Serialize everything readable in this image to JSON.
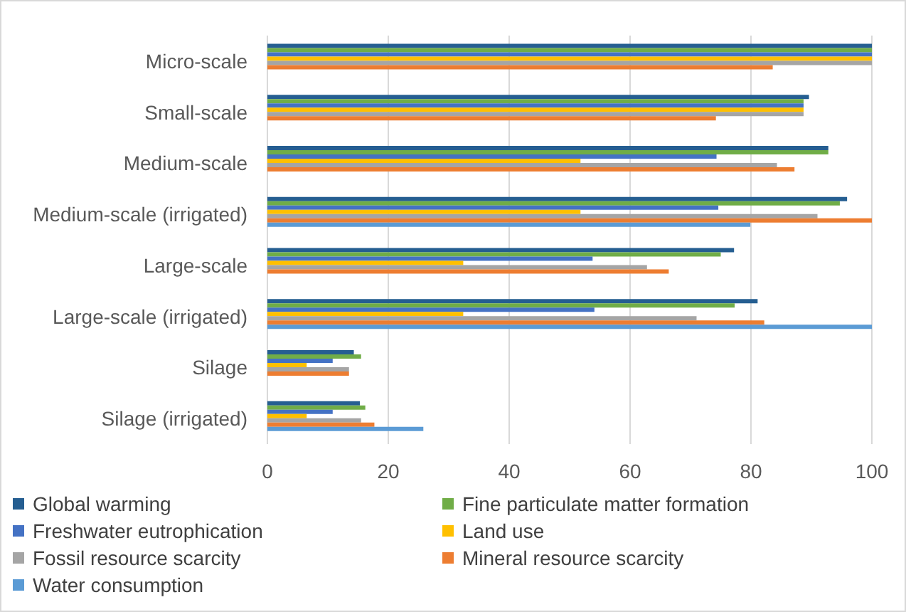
{
  "chart_data": {
    "type": "bar",
    "orientation": "horizontal",
    "categories": [
      "Micro-scale",
      "Small-scale",
      "Medium-scale",
      "Medium-scale (irrigated)",
      "Large-scale",
      "Large-scale (irrigated)",
      "Silage",
      "Silage (irrigated)"
    ],
    "series": [
      {
        "name": "Global warming",
        "color": "#255e91",
        "values": [
          100,
          89.6,
          92.8,
          95.9,
          77.2,
          81.1,
          14.3,
          15.3
        ]
      },
      {
        "name": "Fine particulate matter formation",
        "color": "#70ad47",
        "values": [
          100,
          88.7,
          92.8,
          94.7,
          75,
          77.3,
          15.5,
          16.2
        ]
      },
      {
        "name": "Freshwater eutrophication",
        "color": "#4472c4",
        "values": [
          100,
          88.7,
          74.3,
          74.6,
          53.8,
          54.1,
          10.8,
          10.8
        ]
      },
      {
        "name": "Land use",
        "color": "#ffc000",
        "values": [
          100,
          88.7,
          51.8,
          51.8,
          32.4,
          32.4,
          6.5,
          6.5
        ]
      },
      {
        "name": "Fossil resource scarcity",
        "color": "#a5a5a5",
        "values": [
          100,
          88.7,
          84.3,
          91,
          62.8,
          71,
          13.5,
          15.5
        ]
      },
      {
        "name": "Mineral resource scarcity",
        "color": "#ed7d31",
        "values": [
          83.6,
          74.2,
          87.2,
          100,
          66.4,
          82.2,
          13.5,
          17.7
        ]
      },
      {
        "name": "Water consumption",
        "color": "#5b9bd5",
        "values": [
          null,
          null,
          null,
          79.9,
          null,
          100,
          null,
          25.8
        ]
      }
    ],
    "xlim": [
      0,
      100
    ],
    "xticks": [
      0,
      20,
      40,
      60,
      80,
      100
    ],
    "grid": "x",
    "legend": "bottom"
  }
}
